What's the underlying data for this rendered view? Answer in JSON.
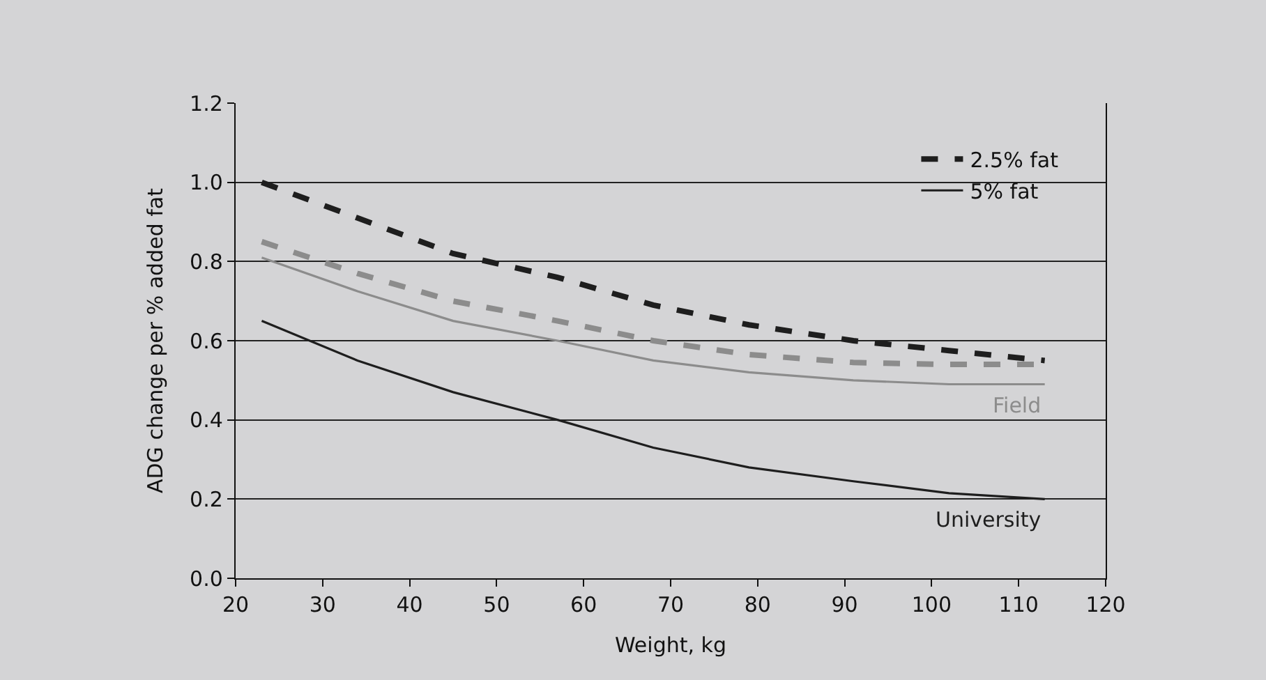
{
  "chart_data": {
    "type": "line",
    "xlabel": "Weight, kg",
    "ylabel": "ADG change per % added fat",
    "x": [
      23,
      34,
      45,
      57,
      68,
      79,
      91,
      102,
      113
    ],
    "series": [
      {
        "name": "2.5% fat",
        "color": "#1e1e1e",
        "line_style": "dashed",
        "values": [
          1.0,
          0.91,
          0.82,
          0.76,
          0.69,
          0.64,
          0.6,
          0.575,
          0.55
        ]
      },
      {
        "color": "#8c8c8c",
        "line_style": "dashed",
        "values": [
          0.85,
          0.77,
          0.7,
          0.65,
          0.6,
          0.565,
          0.545,
          0.54,
          0.54
        ]
      },
      {
        "color": "#8c8c8c",
        "line_style": "solid",
        "values": [
          0.81,
          0.725,
          0.65,
          0.6,
          0.55,
          0.52,
          0.5,
          0.49,
          0.49
        ]
      },
      {
        "name": "5% fat",
        "color": "#1e1e1e",
        "line_style": "solid",
        "values": [
          0.65,
          0.55,
          0.47,
          0.4,
          0.33,
          0.28,
          0.245,
          0.215,
          0.2
        ]
      }
    ],
    "annotations": [
      "Field",
      "University"
    ],
    "xlim": [
      20,
      120
    ],
    "xticks": [
      20,
      30,
      40,
      50,
      60,
      70,
      80,
      90,
      100,
      110,
      120
    ],
    "ylim": [
      0,
      1.2
    ],
    "yticks": [
      {
        "value": 0,
        "label": "0.0"
      },
      0.2,
      0.4,
      0.6,
      0.8,
      {
        "value": 1,
        "label": "1.0"
      },
      1.2
    ],
    "grid": "y",
    "legend": "top right",
    "marker": "none"
  }
}
